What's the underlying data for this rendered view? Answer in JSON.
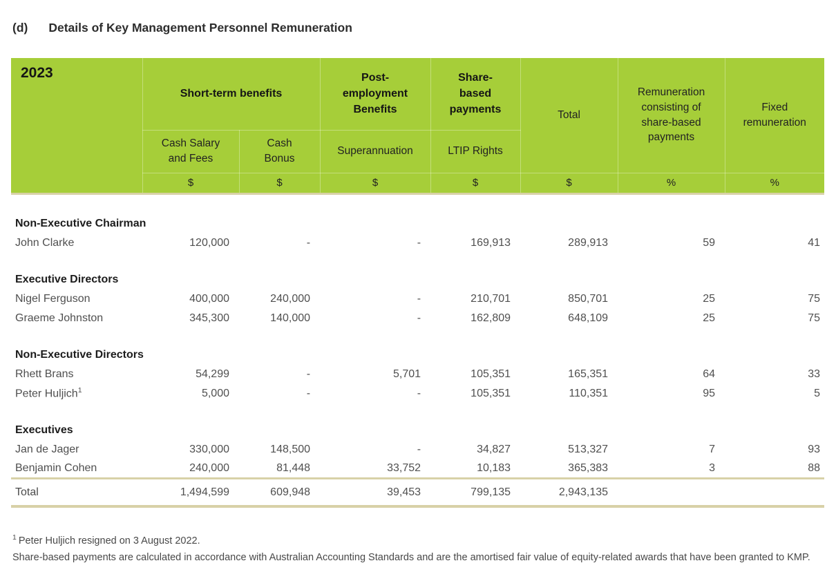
{
  "page": {
    "heading_prefix": "(d)",
    "heading": "Details of Key Management Personnel Remuneration"
  },
  "colors": {
    "header_bg": "#a6ce39",
    "rule_line": "#d8d1a7",
    "body_text": "#4f4f4f"
  },
  "table": {
    "year": "2023",
    "header": {
      "groups": {
        "short_term": "Short-term benefits",
        "post_employment": "Post-employment Benefits",
        "share_based": "Share-based payments",
        "total": "Total",
        "remuneration_share_based": "Remuneration consisting of share-based payments",
        "fixed_remuneration": "Fixed remuneration"
      },
      "sub": {
        "cash_salary": "Cash Salary and Fees",
        "cash_bonus": "Cash Bonus",
        "superannuation": "Superannuation",
        "ltip": "LTIP Rights"
      },
      "units": [
        "$",
        "$",
        "$",
        "$",
        "$",
        "%",
        "%"
      ]
    },
    "sections": [
      {
        "label": "Non-Executive Chairman",
        "rows": [
          {
            "name": "John Clarke",
            "values": [
              "120,000",
              "-",
              "-",
              "169,913",
              "289,913",
              "59",
              "41"
            ]
          }
        ]
      },
      {
        "label": "Executive Directors",
        "rows": [
          {
            "name": "Nigel Ferguson",
            "values": [
              "400,000",
              "240,000",
              "-",
              "210,701",
              "850,701",
              "25",
              "75"
            ]
          },
          {
            "name": "Graeme Johnston",
            "values": [
              "345,300",
              "140,000",
              "-",
              "162,809",
              "648,109",
              "25",
              "75"
            ]
          }
        ]
      },
      {
        "label": "Non-Executive Directors",
        "rows": [
          {
            "name": "Rhett Brans",
            "values": [
              "54,299",
              "-",
              "5,701",
              "105,351",
              "165,351",
              "64",
              "33"
            ]
          },
          {
            "name": "Peter Huljich",
            "sup": "1",
            "values": [
              "5,000",
              "-",
              "-",
              "105,351",
              "110,351",
              "95",
              "5"
            ]
          }
        ]
      },
      {
        "label": "Executives",
        "rows": [
          {
            "name": "Jan de Jager",
            "values": [
              "330,000",
              "148,500",
              "-",
              "34,827",
              "513,327",
              "7",
              "93"
            ]
          },
          {
            "name": "Benjamin Cohen",
            "values": [
              "240,000",
              "81,448",
              "33,752",
              "10,183",
              "365,383",
              "3",
              "88"
            ]
          }
        ]
      }
    ],
    "total_row": {
      "label": "Total",
      "values": [
        "1,494,599",
        "609,948",
        "39,453",
        "799,135",
        "2,943,135",
        "",
        ""
      ]
    }
  },
  "footnotes": [
    {
      "sup": "1",
      "text": "Peter Huljich resigned on 3 August 2022."
    },
    {
      "sup": "",
      "text": "Share-based payments are calculated in accordance with Australian Accounting Standards and are the amortised fair value of equity-related awards that have been granted to KMP."
    }
  ]
}
